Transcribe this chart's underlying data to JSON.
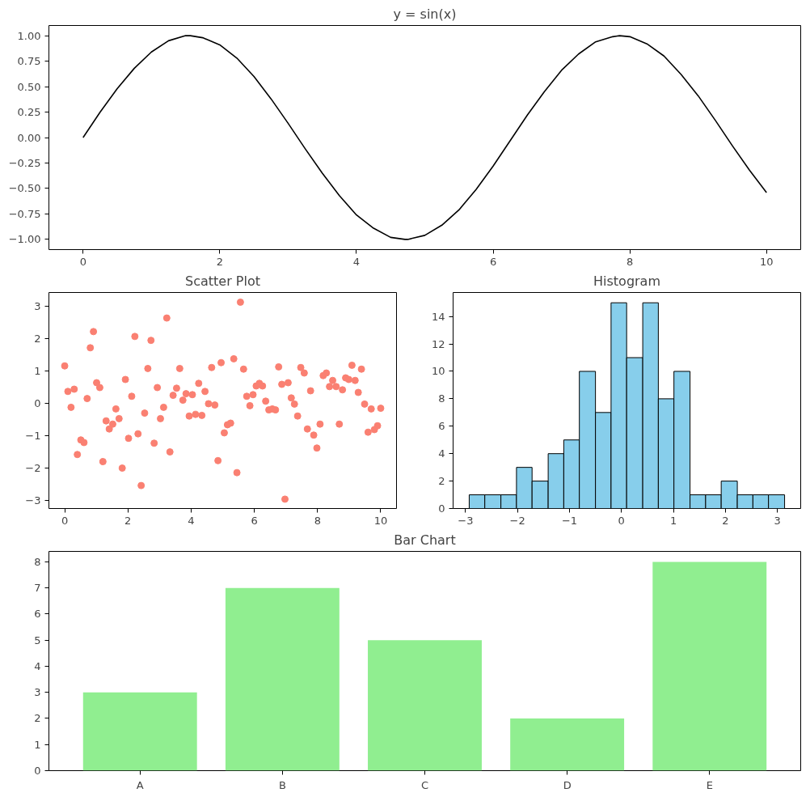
{
  "chart_data": [
    {
      "type": "line",
      "title": "y = sin(x)",
      "grid": false,
      "x": [
        0,
        0.25,
        0.5,
        0.75,
        1,
        1.25,
        1.5,
        1.57,
        1.75,
        2,
        2.25,
        2.5,
        2.75,
        3,
        3.25,
        3.5,
        3.75,
        4,
        4.25,
        4.5,
        4.71,
        4.75,
        5,
        5.25,
        5.5,
        5.75,
        6,
        6.25,
        6.5,
        6.75,
        7,
        7.25,
        7.5,
        7.75,
        7.85,
        8,
        8.25,
        8.5,
        8.75,
        9,
        9.25,
        9.5,
        9.75,
        10
      ],
      "series": [
        {
          "color": "#000000",
          "values": [
            0,
            0.25,
            0.48,
            0.68,
            0.84,
            0.95,
            1.0,
            1.0,
            0.98,
            0.91,
            0.78,
            0.6,
            0.38,
            0.14,
            -0.11,
            -0.35,
            -0.57,
            -0.76,
            -0.89,
            -0.98,
            -1.0,
            -1.0,
            -0.96,
            -0.86,
            -0.71,
            -0.51,
            -0.28,
            -0.03,
            0.22,
            0.45,
            0.66,
            0.82,
            0.94,
            0.99,
            1.0,
            0.99,
            0.92,
            0.8,
            0.62,
            0.41,
            0.17,
            -0.08,
            -0.32,
            -0.54
          ]
        }
      ],
      "xlim": [
        -0.5,
        10.5
      ],
      "xticks": [
        0,
        2,
        4,
        6,
        8,
        10
      ],
      "ylim": [
        -1.1,
        1.1
      ],
      "yticks": [
        {
          "value": -1,
          "label": "−1.00"
        },
        {
          "value": -0.75,
          "label": "−0.75"
        },
        {
          "value": -0.5,
          "label": "−0.50"
        },
        {
          "value": -0.25,
          "label": "−0.25"
        },
        {
          "value": 0,
          "label": "0.00"
        },
        {
          "value": 0.25,
          "label": "0.25"
        },
        {
          "value": 0.5,
          "label": "0.50"
        },
        {
          "value": 0.75,
          "label": "0.75"
        },
        {
          "value": 1,
          "label": "1.00"
        }
      ]
    },
    {
      "type": "scatter",
      "title": "Scatter Plot",
      "grid": false,
      "marker": "circle",
      "x": [
        0,
        0.1,
        0.2,
        0.3,
        0.4,
        0.51,
        0.61,
        0.71,
        0.81,
        0.91,
        1.01,
        1.11,
        1.21,
        1.31,
        1.41,
        1.52,
        1.62,
        1.72,
        1.82,
        1.92,
        2.02,
        2.12,
        2.22,
        2.32,
        2.42,
        2.53,
        2.63,
        2.73,
        2.83,
        2.93,
        3.03,
        3.13,
        3.23,
        3.33,
        3.43,
        3.54,
        3.64,
        3.74,
        3.84,
        3.94,
        4.04,
        4.14,
        4.24,
        4.34,
        4.44,
        4.55,
        4.65,
        4.75,
        4.85,
        4.95,
        5.05,
        5.15,
        5.25,
        5.35,
        5.45,
        5.56,
        5.66,
        5.76,
        5.86,
        5.96,
        6.06,
        6.16,
        6.26,
        6.36,
        6.46,
        6.57,
        6.67,
        6.77,
        6.87,
        6.97,
        7.07,
        7.17,
        7.27,
        7.37,
        7.47,
        7.58,
        7.68,
        7.78,
        7.88,
        7.98,
        8.08,
        8.18,
        8.28,
        8.38,
        8.48,
        8.59,
        8.69,
        8.79,
        8.89,
        8.99,
        9.09,
        9.19,
        9.29,
        9.39,
        9.49,
        9.6,
        9.7,
        9.8,
        9.9,
        10
      ],
      "series": [
        {
          "color": "#fa8072",
          "values": [
            1.16,
            0.37,
            -0.12,
            0.44,
            -1.58,
            -1.13,
            -1.21,
            0.15,
            1.72,
            2.22,
            0.64,
            0.49,
            -1.8,
            -0.54,
            -0.79,
            -0.64,
            -0.17,
            -0.47,
            -2.0,
            0.74,
            -1.08,
            0.22,
            2.07,
            -0.94,
            -2.54,
            -0.3,
            1.08,
            1.95,
            -1.23,
            0.49,
            -0.47,
            -0.12,
            2.64,
            -1.5,
            0.25,
            0.47,
            1.08,
            0.1,
            0.3,
            -0.39,
            0.27,
            -0.34,
            0.62,
            -0.37,
            0.37,
            -0.01,
            1.11,
            -0.05,
            -1.77,
            1.26,
            -0.91,
            -0.66,
            -0.61,
            1.38,
            -2.14,
            3.13,
            1.06,
            0.22,
            -0.07,
            0.27,
            0.54,
            0.62,
            0.54,
            0.07,
            -0.2,
            -0.17,
            -0.2,
            1.13,
            0.59,
            -2.96,
            0.64,
            0.17,
            -0.02,
            -0.39,
            1.11,
            0.94,
            -0.79,
            0.39,
            -0.98,
            -1.38,
            -0.64,
            0.86,
            0.94,
            0.52,
            0.71,
            0.52,
            -0.64,
            0.42,
            0.79,
            0.74,
            1.18,
            0.71,
            0.34,
            1.06,
            -0.02,
            -0.89,
            -0.17,
            -0.81,
            -0.69,
            -0.15
          ]
        }
      ],
      "xlim": [
        -0.5,
        10.5
      ],
      "xticks": [
        0,
        2,
        4,
        6,
        8,
        10
      ],
      "ylim": [
        -3.25,
        3.43
      ],
      "yticks": [
        {
          "value": -3,
          "label": "−3"
        },
        {
          "value": -2,
          "label": "−2"
        },
        {
          "value": -1,
          "label": "−1"
        },
        0,
        1,
        2,
        3
      ]
    },
    {
      "type": "histogram",
      "title": "Histogram",
      "grid": false,
      "bins": [
        -2.93,
        -2.63,
        -2.32,
        -2.02,
        -1.72,
        -1.41,
        -1.11,
        -0.81,
        -0.5,
        -0.2,
        0.1,
        0.41,
        0.71,
        1.01,
        1.32,
        1.62,
        1.92,
        2.23,
        2.53,
        2.83,
        3.14
      ],
      "values": [
        1,
        1,
        1,
        3,
        2,
        4,
        5,
        10,
        7,
        15,
        11,
        15,
        8,
        10,
        1,
        1,
        2,
        1,
        1,
        1
      ],
      "color": "#87ceeb",
      "xlim": [
        -3.24,
        3.45
      ],
      "xticks": [
        {
          "value": -3,
          "label": "−3"
        },
        {
          "value": -2,
          "label": "−2"
        },
        {
          "value": -1,
          "label": "−1"
        },
        0,
        1,
        2,
        3
      ],
      "ylim": [
        0,
        15.75
      ],
      "yticks": [
        0,
        2,
        4,
        6,
        8,
        10,
        12,
        14
      ]
    },
    {
      "type": "bar",
      "title": "Bar Chart",
      "grid": false,
      "categories": [
        "A",
        "B",
        "C",
        "D",
        "E"
      ],
      "series": [
        {
          "color": "#90ee90",
          "values": [
            3,
            7,
            5,
            2,
            8
          ]
        }
      ],
      "ylim": [
        0,
        8.4
      ],
      "yticks": [
        0,
        1,
        2,
        3,
        4,
        5,
        6,
        7,
        8
      ]
    }
  ]
}
